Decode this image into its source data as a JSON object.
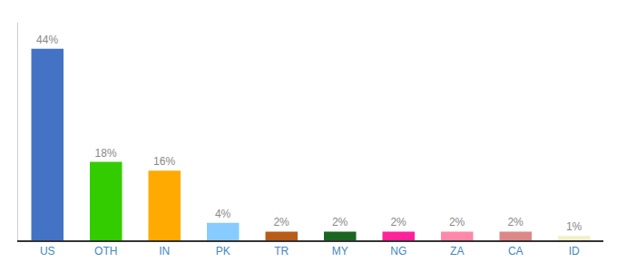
{
  "chart_data": {
    "type": "bar",
    "categories": [
      "US",
      "OTH",
      "IN",
      "PK",
      "TR",
      "MY",
      "NG",
      "ZA",
      "CA",
      "ID"
    ],
    "values": [
      44,
      18,
      16,
      4,
      2,
      2,
      2,
      2,
      2,
      1
    ],
    "value_labels": [
      "44%",
      "18%",
      "16%",
      "4%",
      "2%",
      "2%",
      "2%",
      "2%",
      "2%",
      "1%"
    ],
    "colors": [
      "#4472c4",
      "#33cc00",
      "#ffaa00",
      "#88ccff",
      "#b85c1a",
      "#1a6622",
      "#ff2299",
      "#ff88aa",
      "#dd8888",
      "#f0f0cc"
    ],
    "ylim": [
      0,
      50
    ],
    "data_labels": true,
    "tick_labels": "x",
    "grid": false
  }
}
